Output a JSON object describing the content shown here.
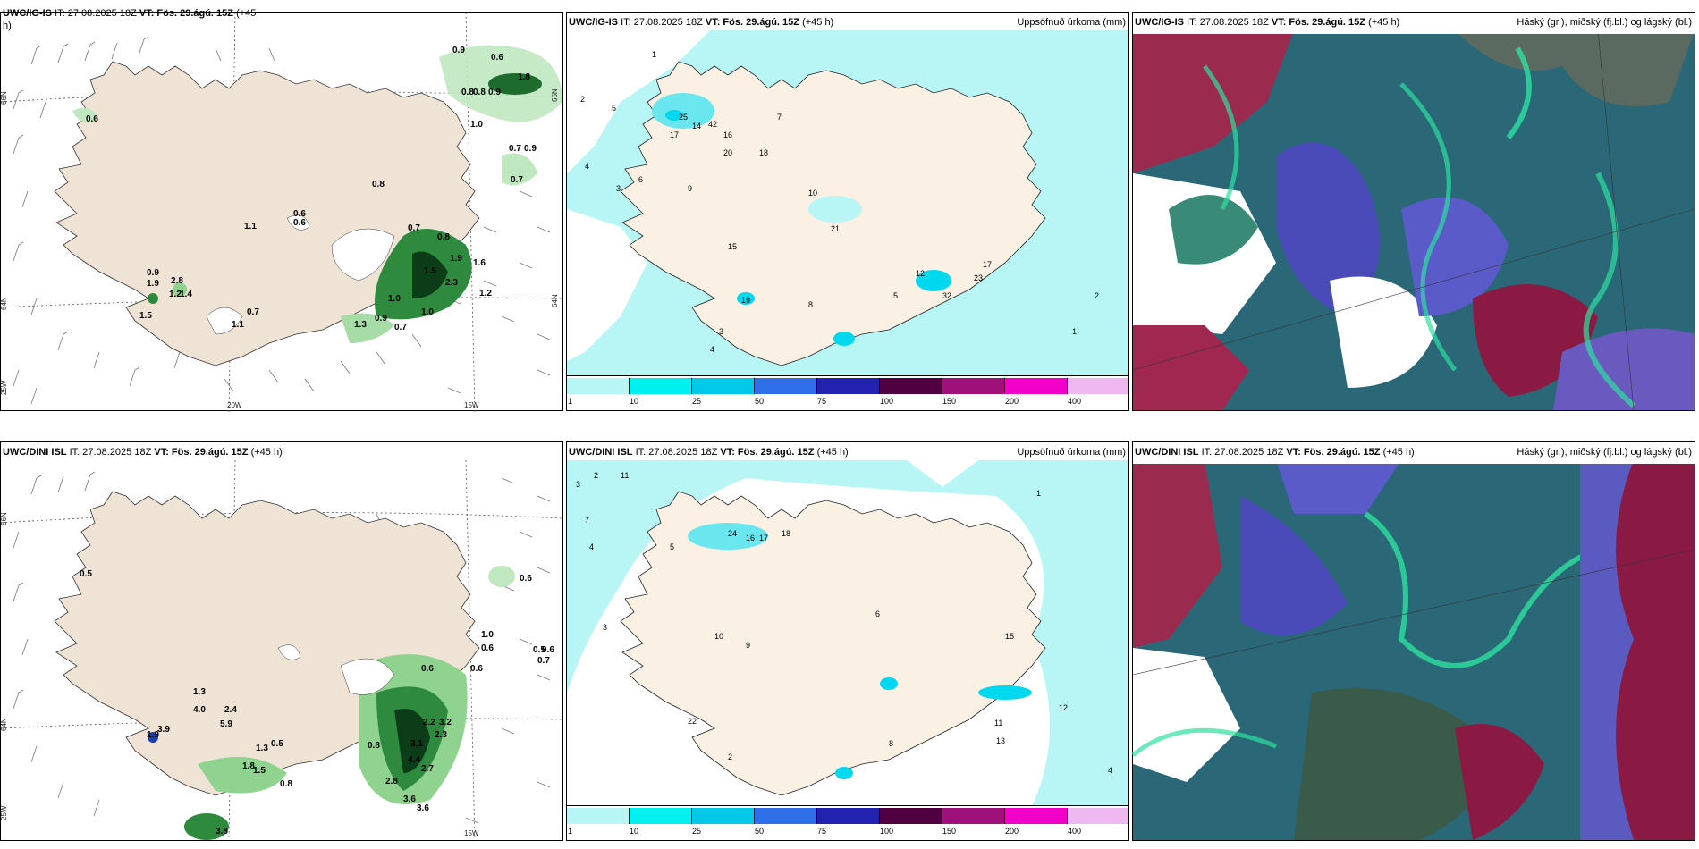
{
  "panels": [
    {
      "id": "p1",
      "header_model": "UWC/IG-IS",
      "header_it": "IT: 27.08.2025 18Z",
      "header_vt": "VT: Fös. 29.ágú. 15Z",
      "header_lead": "(+45",
      "header_lead2": "h)",
      "right_title": ""
    },
    {
      "id": "p2",
      "header_model": "UWC/IG-IS",
      "header_it": "IT: 27.08.2025 18Z",
      "header_vt": "VT: Fös. 29.ágú. 15Z",
      "header_lead": "(+45 h)",
      "right_title": "Uppsöfnuð úrkoma (mm)"
    },
    {
      "id": "p3",
      "header_model": "UWC/IG-IS",
      "header_it": "IT: 27.08.2025 18Z",
      "header_vt": "VT: Fös. 29.ágú. 15Z",
      "header_lead": "(+45 h)",
      "right_title": "Háský (gr.), miðský (fj.bl.) og lágský (bl.)"
    },
    {
      "id": "p4",
      "header_model": "UWC/DINI ISL",
      "header_it": "IT: 27.08.2025 18Z",
      "header_vt": "VT: Fös. 29.ágú. 15Z",
      "header_lead": "(+45 h)",
      "right_title": ""
    },
    {
      "id": "p5",
      "header_model": "UWC/DINI ISL",
      "header_it": "IT: 27.08.2025 18Z",
      "header_vt": "VT: Fös. 29.ágú. 15Z",
      "header_lead": "(+45 h)",
      "right_title": "Uppsöfnuð úrkoma (mm)"
    },
    {
      "id": "p6",
      "header_model": "UWC/DINI ISL",
      "header_it": "IT: 27.08.2025 18Z",
      "header_vt": "VT: Fös. 29.ágú. 15Z",
      "header_lead": "(+45 h)",
      "right_title": "Háský (gr.), miðský (fj.bl.) og lágský (bl.)"
    }
  ],
  "axis_labels": {
    "lat66": "66N",
    "lat64": "64N",
    "lon20": "20W",
    "lon15": "15W",
    "lon25": "25W"
  },
  "colorbar": {
    "ticks": [
      "1",
      "10",
      "25",
      "50",
      "75",
      "100",
      "150",
      "200",
      "400"
    ],
    "colors": [
      "#b8f6f6",
      "#00f0f0",
      "#00c8e8",
      "#2e6ee8",
      "#2222b0",
      "#500040",
      "#a0107a",
      "#f000c8",
      "#f0b8f0"
    ]
  },
  "precip_labels_top": [
    "0.9",
    "0.6",
    "1.8",
    "0.8",
    "0.8",
    "0.9",
    "1.0",
    "0.7",
    "0.9",
    "0.7",
    "0.6",
    "0.8",
    "0.6",
    "0.6",
    "1.1",
    "0.7",
    "0.8",
    "1.6",
    "1.9",
    "1.5",
    "1.0",
    "1.2",
    "2.3",
    "0.9",
    "0.7",
    "1.0",
    "1.3",
    "0.9",
    "1.9",
    "2.8",
    "1.2",
    "1.4",
    "0.7",
    "1.1",
    "1.5"
  ],
  "precip_labels_bottom": [
    "0.5",
    "0.6",
    "1.0",
    "0.6",
    "0.5",
    "0.6",
    "0.7",
    "0.6",
    "0.6",
    "1.3",
    "4.0",
    "2.4",
    "5.9",
    "1.9",
    "3.9",
    "1.3",
    "0.5",
    "1.8",
    "1.5",
    "0.8",
    "0.8",
    "3.8",
    "3.1",
    "4.4",
    "2.7",
    "2.8",
    "3.6",
    "3.6",
    "2.2",
    "3.2",
    "2.3"
  ],
  "accum_labels_top": [
    "1",
    "2",
    "5",
    "4",
    "3",
    "6",
    "25",
    "17",
    "14",
    "42",
    "20",
    "16",
    "18",
    "10",
    "9",
    "7",
    "21",
    "15",
    "19",
    "3",
    "4",
    "8",
    "5",
    "12",
    "17",
    "23",
    "32",
    "2",
    "1"
  ],
  "accum_labels_bottom": [
    "3",
    "2",
    "11",
    "7",
    "4",
    "5",
    "3",
    "24",
    "16",
    "17",
    "18",
    "10",
    "9",
    "8",
    "6",
    "15",
    "11",
    "13",
    "12",
    "22",
    "2",
    "4",
    "1"
  ]
}
